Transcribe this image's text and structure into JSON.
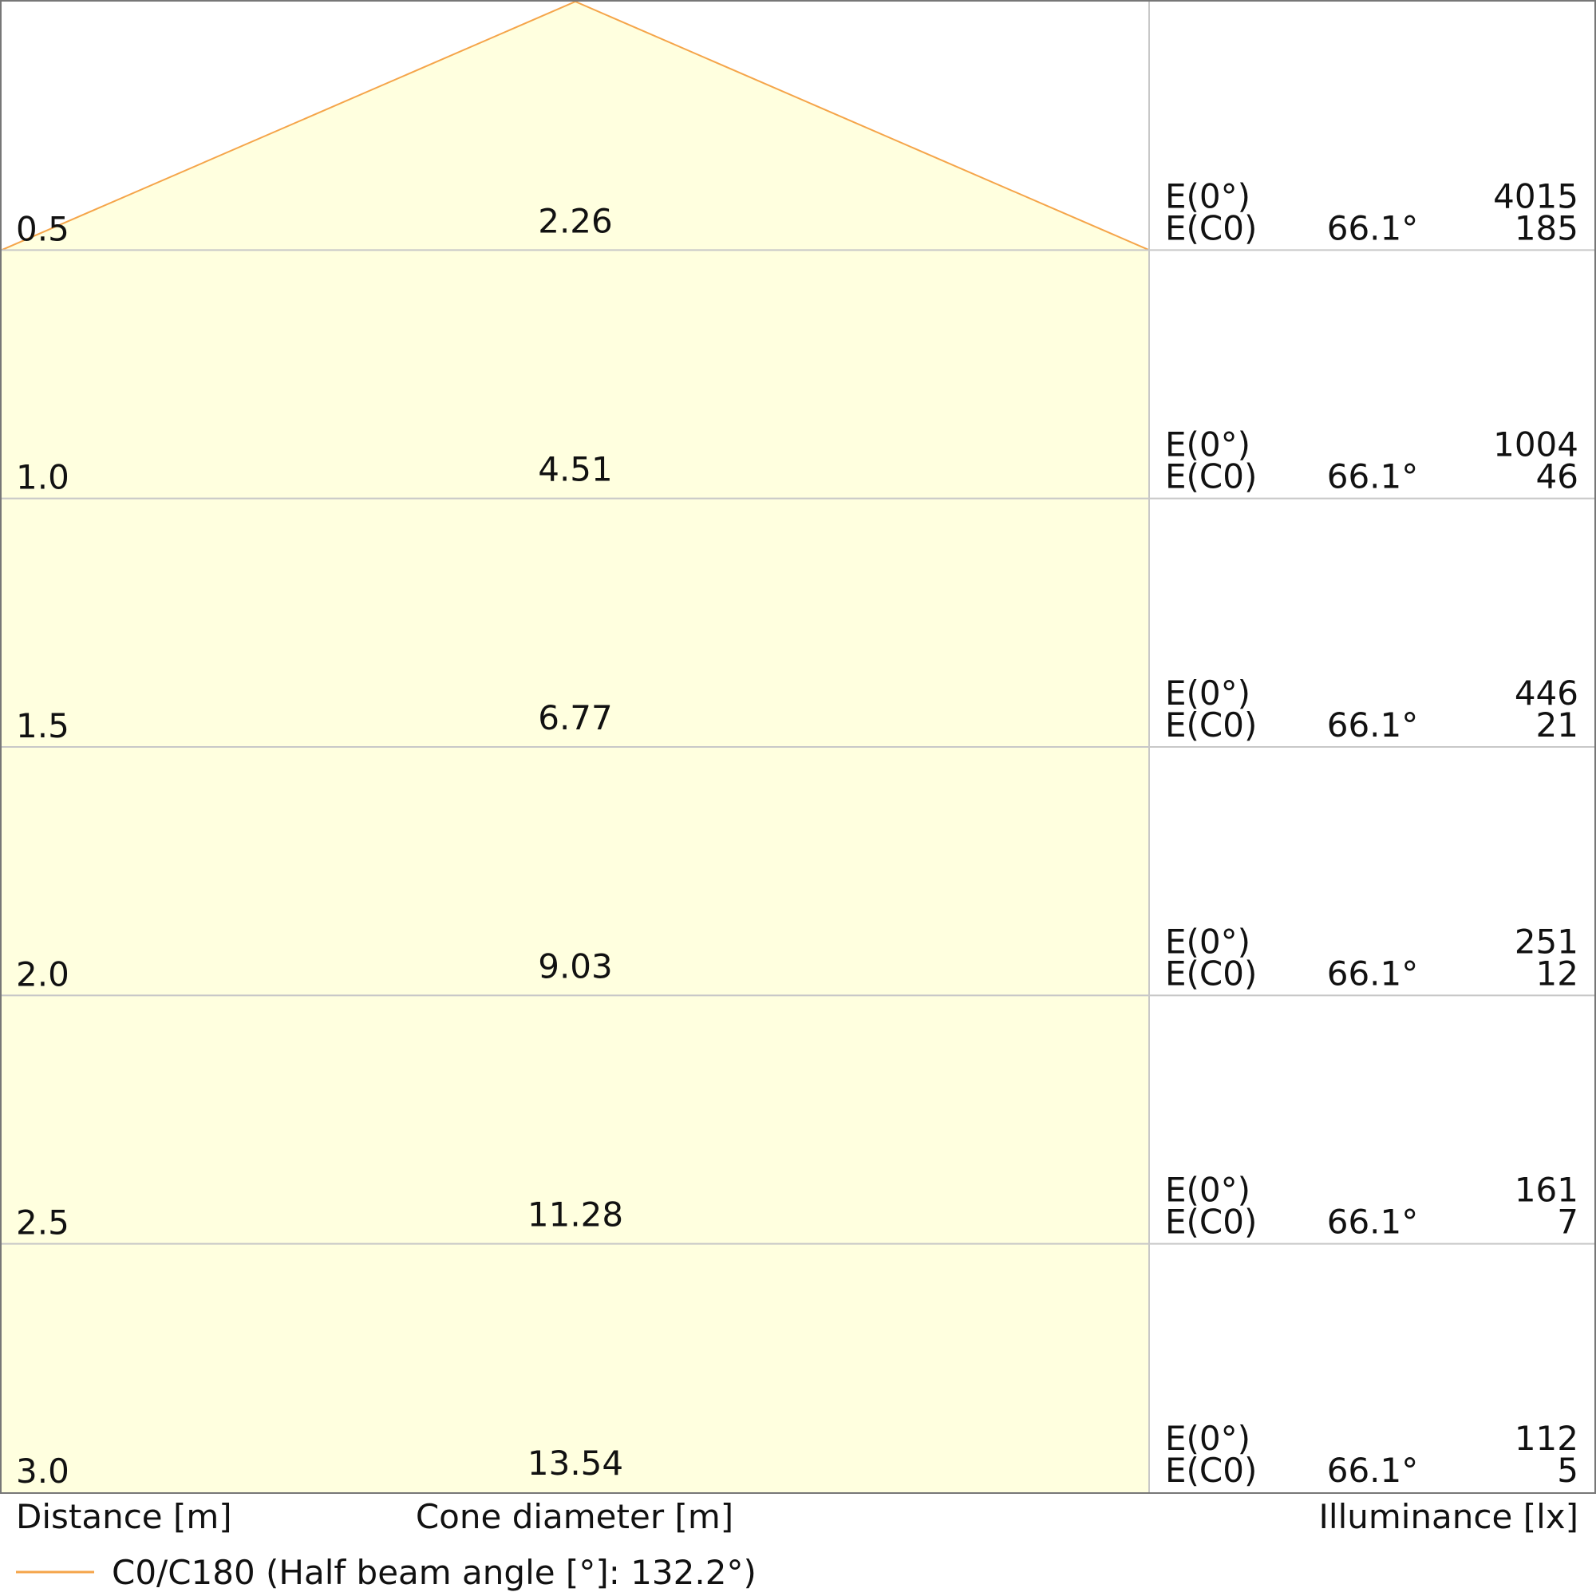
{
  "chart_data": {
    "type": "table",
    "colors": {
      "beam": "#f5a54a",
      "cone_fill": "#ffffdf",
      "grid": "#c8c8c8",
      "text": "#111111"
    },
    "rows": [
      {
        "distance": "0.5",
        "diameter": "2.26",
        "angle": "66.1°",
        "e0": "4015",
        "ec0": "185"
      },
      {
        "distance": "1.0",
        "diameter": "4.51",
        "angle": "66.1°",
        "e0": "1004",
        "ec0": "46"
      },
      {
        "distance": "1.5",
        "diameter": "6.77",
        "angle": "66.1°",
        "e0": "446",
        "ec0": "21"
      },
      {
        "distance": "2.0",
        "diameter": "9.03",
        "angle": "66.1°",
        "e0": "251",
        "ec0": "12"
      },
      {
        "distance": "2.5",
        "diameter": "11.28",
        "angle": "66.1°",
        "e0": "161",
        "ec0": "7"
      },
      {
        "distance": "3.0",
        "diameter": "13.54",
        "angle": "66.1°",
        "e0": "112",
        "ec0": "5"
      }
    ],
    "row_labels": {
      "e0": "E(0°)",
      "ec0": "E(C0)"
    },
    "column_headers": {
      "distance": "Distance [m]",
      "diameter": "Cone diameter [m]",
      "illuminance": "Illuminance [lx]"
    },
    "legend": {
      "label": "C0/C180 (Half beam angle [°]: 132.2°)"
    },
    "half_beam_angle_deg": 132.2
  }
}
